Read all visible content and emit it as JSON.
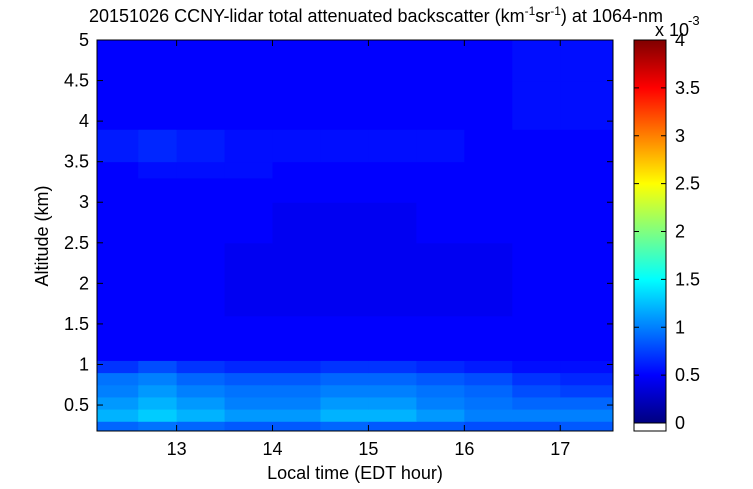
{
  "chart_data": {
    "type": "heatmap",
    "title_parts": [
      "20151026 CCNY-lidar total attenuated backscatter (km",
      "-1",
      "sr",
      "-1",
      ") at 1064-nm"
    ],
    "xlabel": "Local time (EDT hour)",
    "ylabel": "Altitude (km)",
    "xlim": [
      12.17,
      17.55
    ],
    "ylim": [
      0.18,
      5
    ],
    "xticks": [
      13,
      14,
      15,
      16,
      17
    ],
    "yticks": [
      0.5,
      1,
      1.5,
      2,
      2.5,
      3,
      3.5,
      4,
      4.5,
      5
    ],
    "x_edges": [
      12.17,
      12.6,
      13,
      13.5,
      14,
      14.5,
      15,
      15.5,
      16,
      16.5,
      17,
      17.55
    ],
    "y_edges": [
      0.18,
      0.3,
      0.45,
      0.6,
      0.75,
      0.9,
      1.05,
      1.3,
      1.6,
      2,
      2.5,
      3,
      3.3,
      3.5,
      3.9,
      4.5,
      5
    ],
    "z": [
      [
        0.9,
        0.95,
        0.9,
        0.85,
        0.85,
        0.9,
        0.85,
        0.85,
        0.8,
        0.8,
        0.85
      ],
      [
        1.2,
        1.3,
        1.2,
        1.1,
        1.1,
        1.2,
        1.2,
        1.1,
        1.0,
        1.0,
        1.0
      ],
      [
        1.1,
        1.2,
        1.1,
        1.0,
        1.0,
        1.1,
        1.1,
        1.0,
        0.95,
        0.9,
        0.9
      ],
      [
        1.0,
        1.1,
        1.0,
        0.95,
        0.95,
        1.0,
        1.0,
        0.95,
        0.9,
        0.8,
        0.75
      ],
      [
        0.95,
        1.0,
        0.9,
        0.85,
        0.85,
        0.9,
        0.9,
        0.85,
        0.8,
        0.7,
        0.65
      ],
      [
        0.7,
        0.8,
        0.7,
        0.65,
        0.65,
        0.7,
        0.7,
        0.65,
        0.6,
        0.55,
        0.55
      ],
      [
        0.5,
        0.5,
        0.5,
        0.5,
        0.5,
        0.5,
        0.5,
        0.5,
        0.5,
        0.5,
        0.5
      ],
      [
        0.5,
        0.5,
        0.5,
        0.5,
        0.5,
        0.5,
        0.5,
        0.5,
        0.5,
        0.5,
        0.5
      ],
      [
        0.5,
        0.5,
        0.5,
        0.45,
        0.45,
        0.45,
        0.45,
        0.45,
        0.45,
        0.5,
        0.5
      ],
      [
        0.5,
        0.5,
        0.5,
        0.45,
        0.45,
        0.45,
        0.45,
        0.45,
        0.45,
        0.5,
        0.5
      ],
      [
        0.5,
        0.5,
        0.5,
        0.5,
        0.45,
        0.45,
        0.45,
        0.5,
        0.5,
        0.5,
        0.5
      ],
      [
        0.5,
        0.5,
        0.5,
        0.5,
        0.5,
        0.5,
        0.5,
        0.5,
        0.5,
        0.5,
        0.5
      ],
      [
        0.5,
        0.55,
        0.55,
        0.55,
        0.5,
        0.5,
        0.5,
        0.5,
        0.5,
        0.5,
        0.5
      ],
      [
        0.6,
        0.65,
        0.6,
        0.55,
        0.55,
        0.55,
        0.55,
        0.55,
        0.5,
        0.5,
        0.5
      ],
      [
        0.5,
        0.5,
        0.5,
        0.5,
        0.5,
        0.5,
        0.5,
        0.5,
        0.5,
        0.55,
        0.55
      ],
      [
        0.5,
        0.5,
        0.5,
        0.5,
        0.5,
        0.5,
        0.5,
        0.5,
        0.5,
        0.55,
        0.55
      ]
    ],
    "colormap": "jet",
    "clim": [
      0,
      4
    ],
    "cticks": [
      0,
      0.5,
      1,
      1.5,
      2,
      2.5,
      3,
      3.5,
      4
    ],
    "color_exponent_base": "x 10",
    "color_exponent": "-3"
  }
}
